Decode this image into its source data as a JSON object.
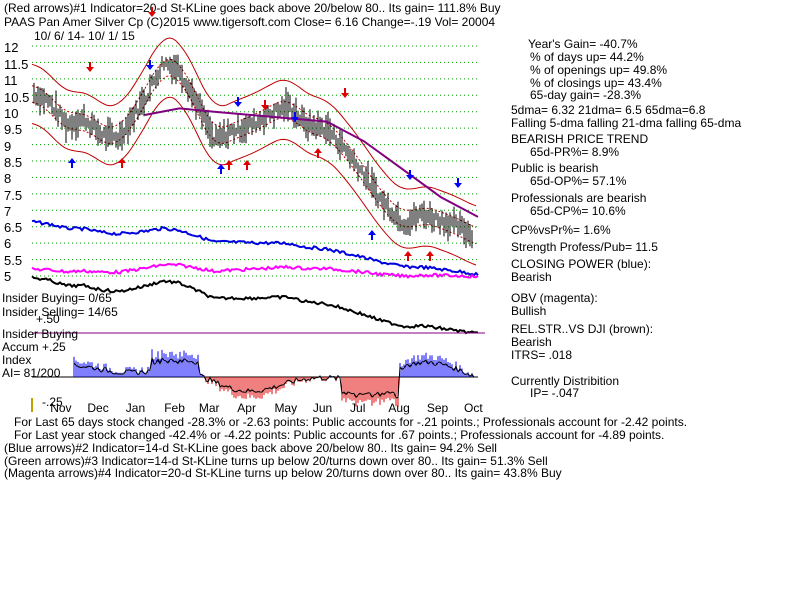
{
  "header": {
    "line1": "(Red arrows)#1 Indicator=20-d St-KLine goes back above 20/below 80.. Its gain= 111.8% Buy",
    "line2": "PAAS   Pan Amer Silver Cp  (C)2015 www.tigersoft.com    Close=  6.16  Change=-.19 Vol= 20004",
    "date_range": "10/ 6/ 14-  10/ 1/ 15"
  },
  "right_panel": {
    "years_gain": "Year's Gain= -40.7%",
    "pct_days_up": "% of days up= 44.2%",
    "pct_openings_up": "% of openings up= 49.8%",
    "pct_closings_up": "% of closings up= 43.4%",
    "gain_65": "65-day gain= -28.3%",
    "dma_values": "5dma= 6.32 21dma= 6.5 65dma=6.8",
    "dma_trend": "Falling 5-dma  falling 21-dma  falling 65-dma",
    "price_trend_title": "BEARISH PRICE TREND",
    "pr_65": "65d-PR%= 8.9%",
    "public_title": "Public is bearish",
    "op_65": "65d-OP%= 57.1%",
    "prof_title": "Professionals are bearish",
    "cp_65": "65d-CP%= 10.6%",
    "cpvspr": "CP%vsPr%=  1.6%",
    "strength": "Strength Profess/Pub= 11.5",
    "closing_power_title": "CLOSING POWER (blue):",
    "closing_power_val": "Bearish",
    "obv_title": "OBV (magenta):",
    "obv_val": "Bullish",
    "relstr_title": "REL.STR..VS DJI (brown):",
    "relstr_val": "Bearish",
    "itrs": "ITRS= .018",
    "dist_title": "Currently Distribition",
    "ip": "IP= -.047"
  },
  "left_labels": {
    "insider_buying": "Insider Buying= 0/65",
    "insider_selling": "Insider Selling= 14/65",
    "insider_buying2": "Insider Buying",
    "accum_plus": "Accum +.25",
    "plus50": "+.50",
    "index": "Index",
    "ai": "AI= 81/200",
    "minus25": "-.25"
  },
  "footer": {
    "line1": "For Last 65 days stock changed -28.3% or -2.63 points:  Public accounts for -.21 points.;  Professionals account for -2.42 points.",
    "line2": "For Last year stock changed -42.4% or -4.22 points:  Public accounts for  .67 points.;  Professionals account for -4.89 points.",
    "line3": "(Blue arrows)#2 Indicator=14-d St-KLine goes back above 20/below 80.. Its gain= 94.2% Sell",
    "line4": "(Green arrows)#3 Indicator=14-d St-KLine turns up below 20/turns down over 80.. Its gain= 51.3% Sell",
    "line5": "(Magenta arrows)#4 Indicator=20-d St-KLine turns up below 20/turns down over 80.. Its gain= 43.8% Buy"
  },
  "colors": {
    "closing_power": "#0000e0",
    "obv": "#ff00ff",
    "ma65": "#800080",
    "band": "#c00000",
    "red_arrow": "#e00000",
    "blue_arrow": "#0000ff",
    "grid": "#00a000",
    "accum_pos": "#0000ff",
    "accum_neg": "#e00000"
  },
  "chart_data": {
    "type": "line",
    "title": "PAAS   Pan Amer Silver Cp",
    "y_ticks": [
      12,
      11.5,
      11,
      10.5,
      10,
      9.5,
      9,
      8.5,
      8,
      7.5,
      7,
      6.5,
      6,
      5.5,
      5
    ],
    "x_ticks": [
      "Nov",
      "Dec",
      "Jan",
      "Feb",
      "Mar",
      "Apr",
      "May",
      "Jun",
      "Jul",
      "Aug",
      "Sep",
      "Oct"
    ],
    "ylim": [
      5,
      12
    ],
    "series": [
      {
        "name": "Price",
        "x": [
          "10/6/14",
          "10/20/14",
          "11/3/14",
          "11/17/14",
          "12/1/14",
          "12/15/14",
          "1/5/15",
          "1/20/15",
          "2/2/15",
          "2/17/15",
          "3/2/15",
          "3/16/15",
          "4/1/15",
          "4/15/15",
          "5/1/15",
          "5/15/15",
          "6/1/15",
          "6/15/15",
          "7/1/15",
          "7/15/15",
          "8/3/15",
          "8/17/15",
          "9/1/15",
          "9/15/15",
          "10/1/15"
        ],
        "values": [
          10.6,
          10.3,
          9.6,
          9.8,
          9.3,
          9.2,
          10.4,
          11.5,
          11.3,
          10.2,
          9.1,
          9.4,
          9.6,
          9.9,
          10.2,
          9.6,
          9.5,
          8.9,
          8.1,
          7.3,
          6.6,
          6.9,
          6.7,
          6.5,
          6.16
        ]
      },
      {
        "name": "65-dma",
        "x": [
          "1/5/15",
          "2/2/15",
          "3/2/15",
          "4/1/15",
          "5/1/15",
          "6/1/15",
          "7/1/15",
          "8/3/15",
          "9/1/15",
          "10/1/15"
        ],
        "values": [
          9.9,
          10.1,
          10.0,
          9.9,
          9.8,
          9.7,
          9.1,
          8.2,
          7.4,
          6.8
        ]
      }
    ]
  }
}
